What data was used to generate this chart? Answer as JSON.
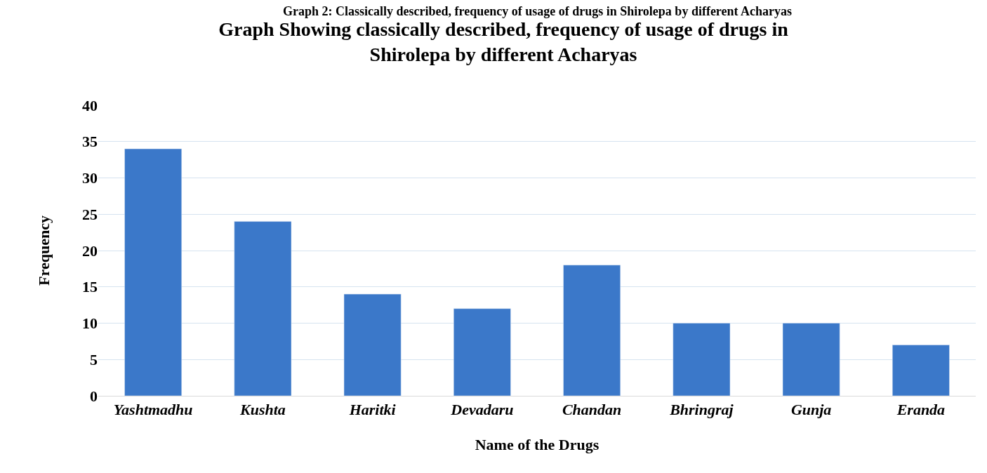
{
  "chart_data": {
    "type": "bar",
    "title": "Graph Showing classically described, frequency of usage of drugs in Shirolepa by different Acharyas",
    "annotations": [
      "Graph 2: Classically described, frequency of usage of drugs in Shirolepa by different Acharyas"
    ],
    "xlabel": "Name of the Drugs",
    "ylabel": "Frequency",
    "categories": [
      "Yashtmadhu",
      "Kushta",
      "Haritki",
      "Devadaru",
      "Chandan",
      "Bhringraj",
      "Gunja",
      "Eranda"
    ],
    "values": [
      34,
      24,
      14,
      12,
      18,
      10,
      10,
      7
    ],
    "color": "#3b78c9",
    "ylim": [
      0,
      40
    ],
    "yticks": [
      0,
      5,
      10,
      15,
      20,
      25,
      30,
      35,
      40
    ],
    "grid": "y"
  }
}
